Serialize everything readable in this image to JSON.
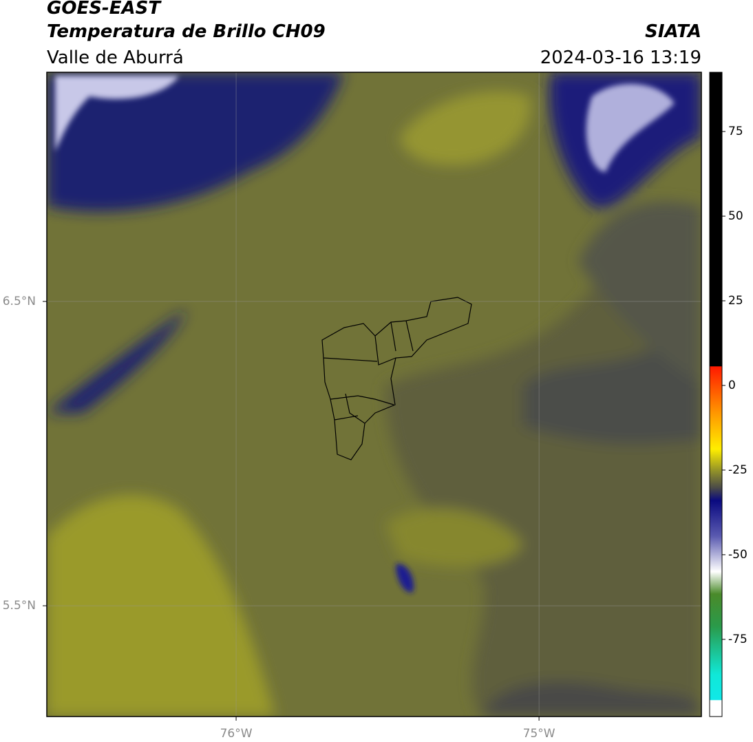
{
  "header": {
    "title": "GOES-EAST",
    "subtitle": "Temperatura de Brillo CH09",
    "source": "SIATA",
    "region": "Valle de Aburrá",
    "datetime": "2024-03-16 13:19"
  },
  "map": {
    "lonlim": [
      -76.625,
      -74.464
    ],
    "latlim": [
      5.136,
      7.253
    ],
    "lon_ticks": [
      {
        "value": -76,
        "label": "76°W"
      },
      {
        "value": -75,
        "label": "75°W"
      }
    ],
    "lat_ticks": [
      {
        "value": 6.5,
        "label": "6.5°N"
      },
      {
        "value": 5.5,
        "label": "5.5°N"
      }
    ]
  },
  "colorbar": {
    "range": [
      -97.8,
      92.5
    ],
    "ticks": [
      75,
      50,
      25,
      0,
      -25,
      -50,
      -75
    ]
  }
}
